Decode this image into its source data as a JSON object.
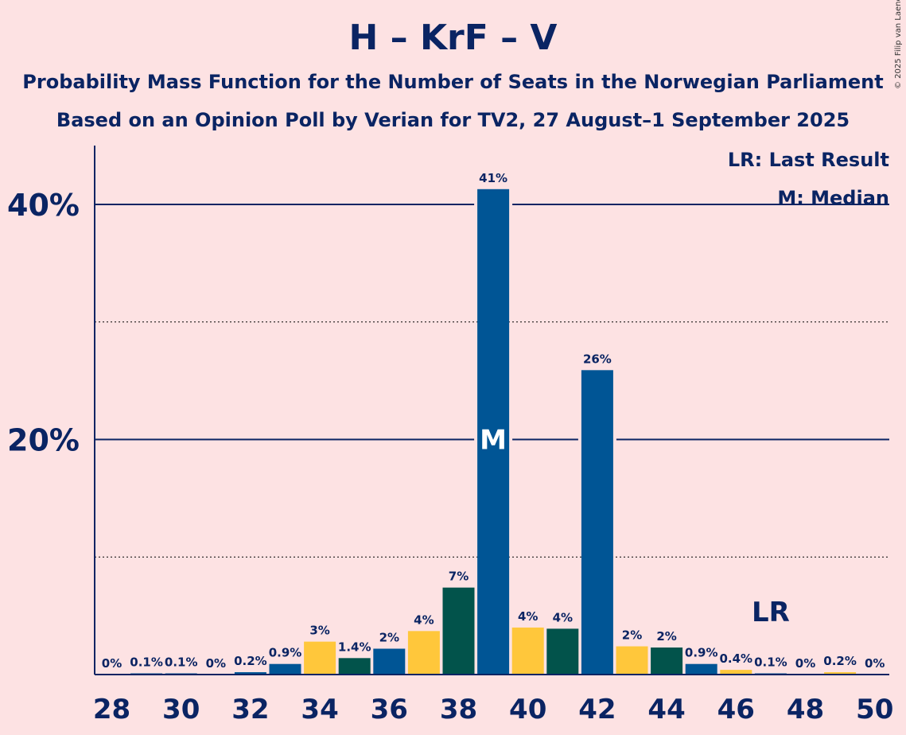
{
  "header": {
    "title": "H – KrF – V",
    "subtitle1": "Probability Mass Function for the Number of Seats in the Norwegian Parliament",
    "subtitle2": "Based on an Opinion Poll by Verian for TV2, 27 August–1 September 2025",
    "copyright": "© 2025 Filip van Laenen"
  },
  "legend": {
    "last_result": "LR: Last Result",
    "median": "M: Median"
  },
  "colors": {
    "blue": "#005595",
    "yellow": "#FFC73B",
    "green": "#02534B",
    "text": "#0a2463",
    "background": "#fde2e3"
  },
  "chart_data": {
    "type": "bar",
    "x": [
      28,
      29,
      30,
      31,
      32,
      33,
      34,
      35,
      36,
      37,
      38,
      39,
      40,
      41,
      42,
      43,
      44,
      45,
      46,
      47,
      48,
      49,
      50
    ],
    "values": [
      0,
      0.1,
      0.1,
      0,
      0.2,
      0.9,
      2.8,
      1.4,
      2.2,
      3.7,
      7.4,
      41.3,
      4.0,
      3.9,
      25.9,
      2.4,
      2.3,
      0.9,
      0.4,
      0.1,
      0,
      0.2,
      0
    ],
    "labels": [
      "0%",
      "0.1%",
      "0.1%",
      "0%",
      "0.2%",
      "0.9%",
      "3%",
      "1.4%",
      "2%",
      "4%",
      "7%",
      "41%",
      "4%",
      "4%",
      "26%",
      "2%",
      "2%",
      "0.9%",
      "0.4%",
      "0.1%",
      "0%",
      "0.2%",
      "0%"
    ],
    "bar_colors": [
      "blue",
      "blue",
      "blue",
      "blue",
      "blue",
      "blue",
      "yellow",
      "green",
      "blue",
      "yellow",
      "green",
      "blue",
      "yellow",
      "green",
      "blue",
      "yellow",
      "green",
      "blue",
      "yellow",
      "blue",
      "blue",
      "yellow",
      "blue"
    ],
    "x_tick_labels": [
      "28",
      "30",
      "32",
      "34",
      "36",
      "38",
      "40",
      "42",
      "44",
      "46",
      "48",
      "50"
    ],
    "y_tick_labels": [
      "20%",
      "40%"
    ],
    "ylim": [
      0,
      45
    ],
    "median": 39,
    "median_label": "M",
    "last_result": 47,
    "last_result_label": "LR",
    "grid": true,
    "legend_position": "top-right"
  }
}
